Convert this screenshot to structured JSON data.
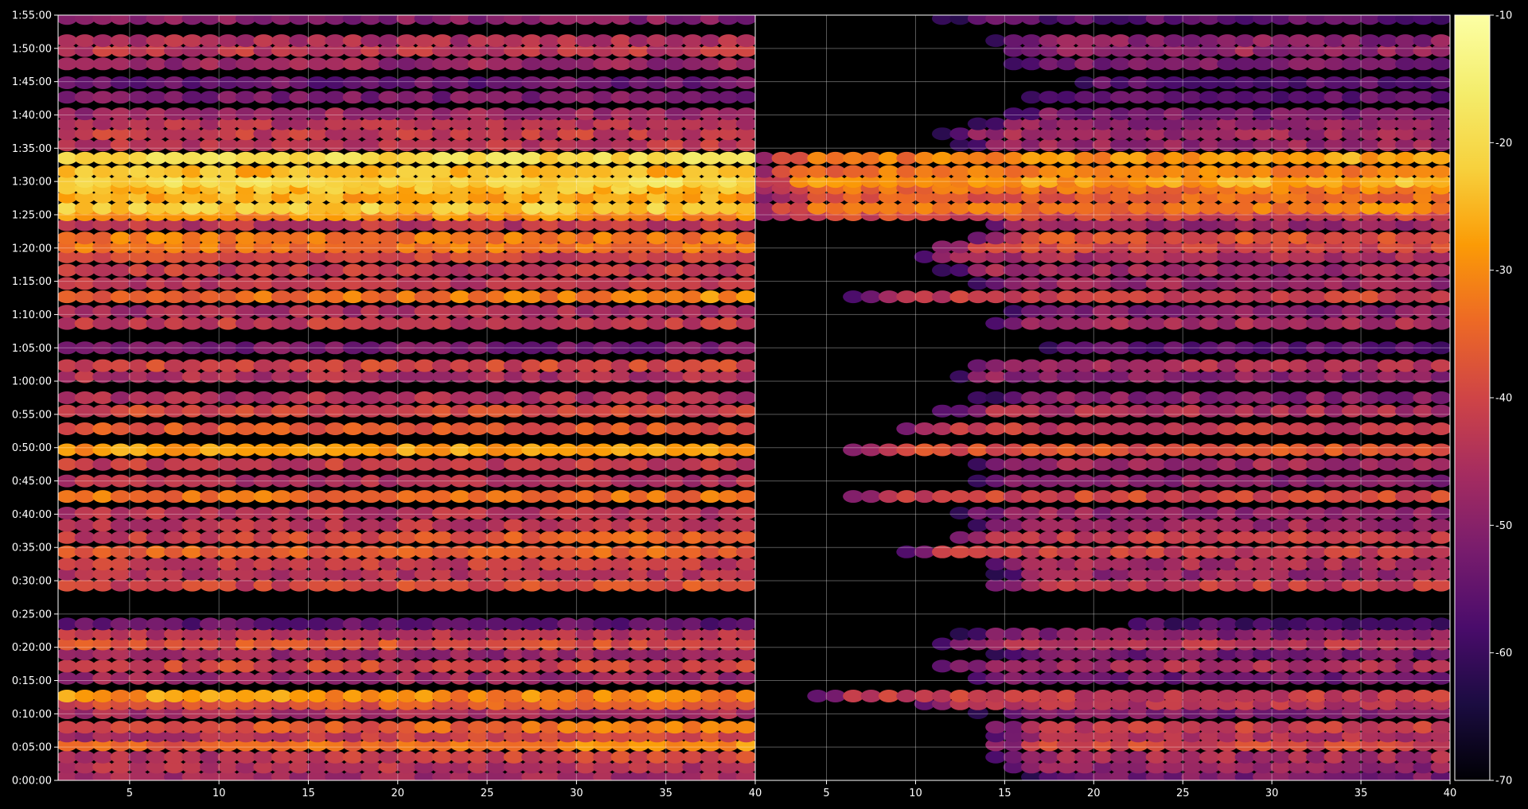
{
  "chart_data": {
    "type": "heatmap",
    "title": "",
    "xlabel": "",
    "ylabel": "",
    "colormap": "inferno",
    "background": "#000000",
    "grid": true,
    "colorbar": {
      "range": [
        -70,
        -10
      ],
      "ticks": [
        "-10",
        "-20",
        "-30",
        "-40",
        "-50",
        "-60",
        "-70"
      ],
      "tick_values": [
        -10,
        -20,
        -30,
        -40,
        -50,
        -60,
        -70
      ],
      "placement": "right"
    },
    "y_axis": {
      "range_seconds": [
        0,
        6900
      ],
      "ticks": [
        "0:00:00",
        "0:05:00",
        "0:10:00",
        "0:15:00",
        "0:20:00",
        "0:25:00",
        "0:30:00",
        "0:35:00",
        "0:40:00",
        "0:45:00",
        "0:50:00",
        "0:55:00",
        "1:00:00",
        "1:05:00",
        "1:10:00",
        "1:15:00",
        "1:20:00",
        "1:25:00",
        "1:30:00",
        "1:35:00",
        "1:40:00",
        "1:45:00",
        "1:50:00",
        "1:55:00"
      ],
      "tick_seconds": [
        0,
        300,
        600,
        900,
        1200,
        1500,
        1800,
        2100,
        2400,
        2700,
        3000,
        3300,
        3600,
        3900,
        4200,
        4500,
        4800,
        5100,
        5400,
        5700,
        6000,
        6300,
        6600,
        6900
      ]
    },
    "panels": [
      {
        "name": "left",
        "x_range": [
          1,
          40
        ],
        "x_ticks": [
          "5",
          "10",
          "15",
          "20",
          "25",
          "30",
          "35",
          "40"
        ],
        "x_tick_values": [
          5,
          10,
          15,
          20,
          25,
          30,
          35,
          40
        ],
        "data_x_extent": [
          1.5,
          39.5
        ],
        "bands": [
          {
            "t": "0:00:30",
            "v": -47,
            "g": 0
          },
          {
            "t": "0:02:00",
            "v": -44,
            "g": 0
          },
          {
            "t": "0:03:30",
            "v": -42,
            "g": 0.2
          },
          {
            "t": "0:05:20",
            "v": -33,
            "g": 0.2
          },
          {
            "t": "0:06:40",
            "v": -42,
            "g": 0.2
          },
          {
            "t": "0:08:00",
            "v": -36,
            "g": 0.25
          },
          {
            "t": "0:10:10",
            "v": -46,
            "g": 0
          },
          {
            "t": "0:11:30",
            "v": -37,
            "g": 0.1
          },
          {
            "t": "0:12:40",
            "v": -30,
            "g": -0.1
          },
          {
            "t": "0:15:20",
            "v": -47,
            "g": 0
          },
          {
            "t": "0:17:10",
            "v": -40,
            "g": 0
          },
          {
            "t": "0:19:00",
            "v": -48,
            "g": 0
          },
          {
            "t": "0:20:30",
            "v": -38,
            "g": 0
          },
          {
            "t": "0:22:00",
            "v": -44,
            "g": 0
          },
          {
            "t": "0:23:30",
            "v": -55,
            "g": 0
          },
          {
            "t": "0:29:20",
            "v": -40,
            "g": 0.1
          },
          {
            "t": "0:31:00",
            "v": -44,
            "g": 0
          },
          {
            "t": "0:32:30",
            "v": -42,
            "g": 0
          },
          {
            "t": "0:34:20",
            "v": -35,
            "g": 0
          },
          {
            "t": "0:36:30",
            "v": -38,
            "g": 0.25
          },
          {
            "t": "0:38:20",
            "v": -43,
            "g": 0
          },
          {
            "t": "0:40:10",
            "v": -44,
            "g": 0
          },
          {
            "t": "0:42:40",
            "v": -33,
            "g": 0
          },
          {
            "t": "0:45:00",
            "v": -45,
            "g": 0
          },
          {
            "t": "0:47:30",
            "v": -42,
            "g": 0
          },
          {
            "t": "0:49:40",
            "v": -28,
            "g": 0
          },
          {
            "t": "0:52:50",
            "v": -37,
            "g": 0
          },
          {
            "t": "0:55:30",
            "v": -40,
            "g": 0
          },
          {
            "t": "0:57:30",
            "v": -45,
            "g": 0
          },
          {
            "t": "1:00:40",
            "v": -45,
            "g": 0
          },
          {
            "t": "1:02:20",
            "v": -40,
            "g": 0
          },
          {
            "t": "1:05:00",
            "v": -52,
            "g": 0
          },
          {
            "t": "1:08:40",
            "v": -42,
            "g": 0
          },
          {
            "t": "1:10:30",
            "v": -46,
            "g": 0
          },
          {
            "t": "1:12:40",
            "v": -33,
            "g": 0.15
          },
          {
            "t": "1:14:40",
            "v": -43,
            "g": 0
          },
          {
            "t": "1:16:40",
            "v": -42,
            "g": 0
          },
          {
            "t": "1:18:40",
            "v": -40,
            "g": 0
          },
          {
            "t": "1:20:10",
            "v": -33,
            "g": 0
          },
          {
            "t": "1:21:30",
            "v": -32,
            "g": 0
          },
          {
            "t": "1:23:30",
            "v": -43,
            "g": 0
          },
          {
            "t": "1:25:00",
            "v": -30,
            "g": 0
          },
          {
            "t": "1:26:00",
            "v": -22,
            "g": 0
          },
          {
            "t": "1:27:40",
            "v": -27,
            "g": 0
          },
          {
            "t": "1:29:00",
            "v": -24,
            "g": 0
          },
          {
            "t": "1:30:00",
            "v": -20,
            "g": 0
          },
          {
            "t": "1:31:30",
            "v": -25,
            "g": 0
          },
          {
            "t": "1:33:30",
            "v": -20,
            "g": 0
          },
          {
            "t": "1:35:30",
            "v": -43,
            "g": 0
          },
          {
            "t": "1:37:10",
            "v": -42,
            "g": 0
          },
          {
            "t": "1:38:40",
            "v": -44,
            "g": 0
          },
          {
            "t": "1:40:10",
            "v": -47,
            "g": 0
          },
          {
            "t": "1:42:40",
            "v": -52,
            "g": 0
          },
          {
            "t": "1:44:50",
            "v": -54,
            "g": 0
          },
          {
            "t": "1:47:40",
            "v": -48,
            "g": 0
          },
          {
            "t": "1:49:40",
            "v": -43,
            "g": 0
          },
          {
            "t": "1:51:10",
            "v": -45,
            "g": 0
          },
          {
            "t": "1:54:30",
            "v": -50,
            "g": 0
          }
        ]
      },
      {
        "name": "right",
        "x_range": [
          1,
          40
        ],
        "x_ticks": [
          "5",
          "10",
          "15",
          "20",
          "25",
          "30",
          "35",
          "40"
        ],
        "x_tick_values": [
          5,
          10,
          15,
          20,
          25,
          30,
          35,
          40
        ],
        "data_x_extent": [
          1.5,
          39.5
        ],
        "bands": [
          {
            "t": "0:00:30",
            "v": -52,
            "g": 0,
            "s": 15
          },
          {
            "t": "0:02:00",
            "v": -49,
            "g": 0,
            "s": 14
          },
          {
            "t": "0:03:30",
            "v": -46,
            "g": 0,
            "s": 14
          },
          {
            "t": "0:05:20",
            "v": -40,
            "g": 0,
            "s": 14
          },
          {
            "t": "0:06:40",
            "v": -45,
            "g": 0,
            "s": 14
          },
          {
            "t": "0:08:00",
            "v": -42,
            "g": 0,
            "s": 14
          },
          {
            "t": "0:10:10",
            "v": -52,
            "g": 0,
            "s": 13
          },
          {
            "t": "0:11:30",
            "v": -44,
            "g": 0,
            "s": 10
          },
          {
            "t": "0:12:40",
            "v": -42,
            "g": 0,
            "s": 4
          },
          {
            "t": "0:15:20",
            "v": -53,
            "g": 0,
            "s": 12
          },
          {
            "t": "0:17:10",
            "v": -46,
            "g": 0,
            "s": 11
          },
          {
            "t": "0:19:00",
            "v": -53,
            "g": 0,
            "s": 13
          },
          {
            "t": "0:20:30",
            "v": -44,
            "g": 0,
            "s": 11
          },
          {
            "t": "0:22:00",
            "v": -50,
            "g": 0,
            "s": 12
          },
          {
            "t": "0:23:30",
            "v": -58,
            "g": 0,
            "s": 20
          },
          {
            "t": "0:29:20",
            "v": -42,
            "g": 0,
            "s": 14
          },
          {
            "t": "0:31:00",
            "v": -48,
            "g": 0,
            "s": 14
          },
          {
            "t": "0:32:30",
            "v": -46,
            "g": 0,
            "s": 14
          },
          {
            "t": "0:34:20",
            "v": -42,
            "g": 0,
            "s": 9
          },
          {
            "t": "0:36:30",
            "v": -42,
            "g": 0,
            "s": 12
          },
          {
            "t": "0:38:20",
            "v": -47,
            "g": 0,
            "s": 13
          },
          {
            "t": "0:40:10",
            "v": -48,
            "g": 0,
            "s": 12
          },
          {
            "t": "0:42:40",
            "v": -40,
            "g": 0,
            "s": 6
          },
          {
            "t": "0:45:00",
            "v": -50,
            "g": 0,
            "s": 13
          },
          {
            "t": "0:47:30",
            "v": -47,
            "g": 0,
            "s": 13
          },
          {
            "t": "0:49:40",
            "v": -38,
            "g": 0,
            "s": 6
          },
          {
            "t": "0:52:50",
            "v": -42,
            "g": 0,
            "s": 9
          },
          {
            "t": "0:55:30",
            "v": -45,
            "g": 0,
            "s": 11
          },
          {
            "t": "0:57:30",
            "v": -50,
            "g": 0,
            "s": 13
          },
          {
            "t": "1:00:40",
            "v": -50,
            "g": 0,
            "s": 11
          },
          {
            "t": "1:02:20",
            "v": -45,
            "g": 0,
            "s": 13
          },
          {
            "t": "1:05:00",
            "v": -56,
            "g": 0,
            "s": 15
          },
          {
            "t": "1:08:40",
            "v": -46,
            "g": 0,
            "s": 14
          },
          {
            "t": "1:10:30",
            "v": -50,
            "g": 0,
            "s": 14
          },
          {
            "t": "1:12:40",
            "v": -42,
            "g": 0.1,
            "s": 6
          },
          {
            "t": "1:14:40",
            "v": -48,
            "g": 0,
            "s": 13
          },
          {
            "t": "1:16:40",
            "v": -47,
            "g": 0,
            "s": 11
          },
          {
            "t": "1:18:40",
            "v": -45,
            "g": 0,
            "s": 10
          },
          {
            "t": "1:20:10",
            "v": -40,
            "g": 0,
            "s": 11
          },
          {
            "t": "1:21:30",
            "v": -38,
            "g": 0,
            "s": 13
          },
          {
            "t": "1:23:30",
            "v": -48,
            "g": 0,
            "s": 13
          },
          {
            "t": "1:25:00",
            "v": -40,
            "g": 0,
            "s": 1
          },
          {
            "t": "1:26:00",
            "v": -33,
            "g": 0.1,
            "s": 1
          },
          {
            "t": "1:27:40",
            "v": -36,
            "g": 0.1,
            "s": 1
          },
          {
            "t": "1:29:00",
            "v": -33,
            "g": 0.1,
            "s": 1
          },
          {
            "t": "1:30:00",
            "v": -28,
            "g": 0.15,
            "s": 1
          },
          {
            "t": "1:31:30",
            "v": -32,
            "g": 0.1,
            "s": 1
          },
          {
            "t": "1:33:30",
            "v": -30,
            "g": 0.2,
            "s": 1
          },
          {
            "t": "1:35:30",
            "v": -48,
            "g": 0,
            "s": 12
          },
          {
            "t": "1:37:10",
            "v": -47,
            "g": 0,
            "s": 11
          },
          {
            "t": "1:38:40",
            "v": -49,
            "g": 0,
            "s": 13
          },
          {
            "t": "1:40:10",
            "v": -52,
            "g": 0,
            "s": 14
          },
          {
            "t": "1:42:40",
            "v": -55,
            "g": 0,
            "s": 15
          },
          {
            "t": "1:44:50",
            "v": -56,
            "g": 0,
            "s": 17
          },
          {
            "t": "1:47:40",
            "v": -52,
            "g": 0,
            "s": 14
          },
          {
            "t": "1:49:40",
            "v": -48,
            "g": 0,
            "s": 14
          },
          {
            "t": "1:51:10",
            "v": -50,
            "g": 0,
            "s": 14
          },
          {
            "t": "1:54:30",
            "v": -56,
            "g": 0,
            "s": 10
          }
        ]
      }
    ]
  }
}
